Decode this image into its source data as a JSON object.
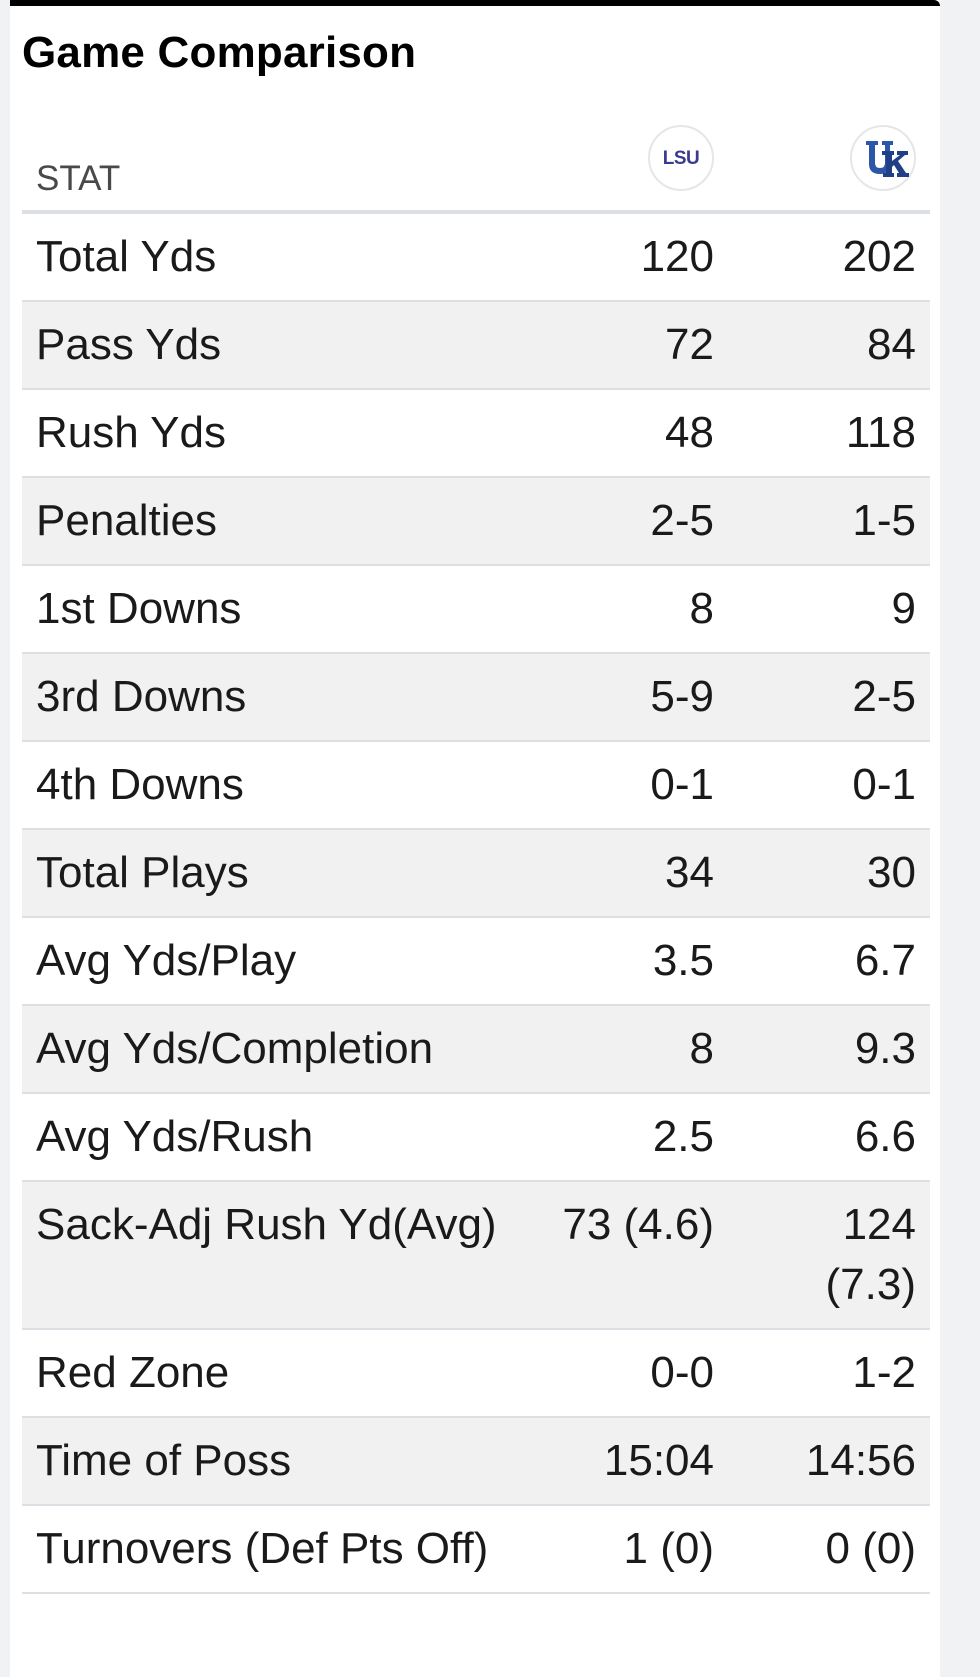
{
  "title": "Game Comparison",
  "header": {
    "stat_label": "STAT",
    "teams": [
      {
        "abbr": "LSU",
        "logo_icon": "lsu-logo-icon",
        "logo_color": "#3b3b8c"
      },
      {
        "abbr": "UK",
        "logo_icon": "kentucky-logo-icon",
        "logo_color": "#2c56a8"
      }
    ]
  },
  "rows": [
    {
      "stat": "Total Yds",
      "lsu": "120",
      "uk": "202"
    },
    {
      "stat": "Pass Yds",
      "lsu": "72",
      "uk": "84"
    },
    {
      "stat": "Rush Yds",
      "lsu": "48",
      "uk": "118"
    },
    {
      "stat": "Penalties",
      "lsu": "2-5",
      "uk": "1-5"
    },
    {
      "stat": "1st Downs",
      "lsu": "8",
      "uk": "9"
    },
    {
      "stat": "3rd Downs",
      "lsu": "5-9",
      "uk": "2-5"
    },
    {
      "stat": "4th Downs",
      "lsu": "0-1",
      "uk": "0-1"
    },
    {
      "stat": "Total Plays",
      "lsu": "34",
      "uk": "30"
    },
    {
      "stat": "Avg Yds/Play",
      "lsu": "3.5",
      "uk": "6.7"
    },
    {
      "stat": "Avg Yds/Completion",
      "lsu": "8",
      "uk": "9.3"
    },
    {
      "stat": "Avg Yds/Rush",
      "lsu": "2.5",
      "uk": "6.6"
    },
    {
      "stat": "Sack-Adj Rush Yd(Avg)",
      "lsu": "73 (4.6)",
      "uk": "124 (7.3)"
    },
    {
      "stat": "Red Zone",
      "lsu": "0-0",
      "uk": "1-2"
    },
    {
      "stat": "Time of Poss",
      "lsu": "15:04",
      "uk": "14:56"
    },
    {
      "stat": "Turnovers (Def Pts Off)",
      "lsu": "1 (0)",
      "uk": "0 (0)"
    }
  ]
}
